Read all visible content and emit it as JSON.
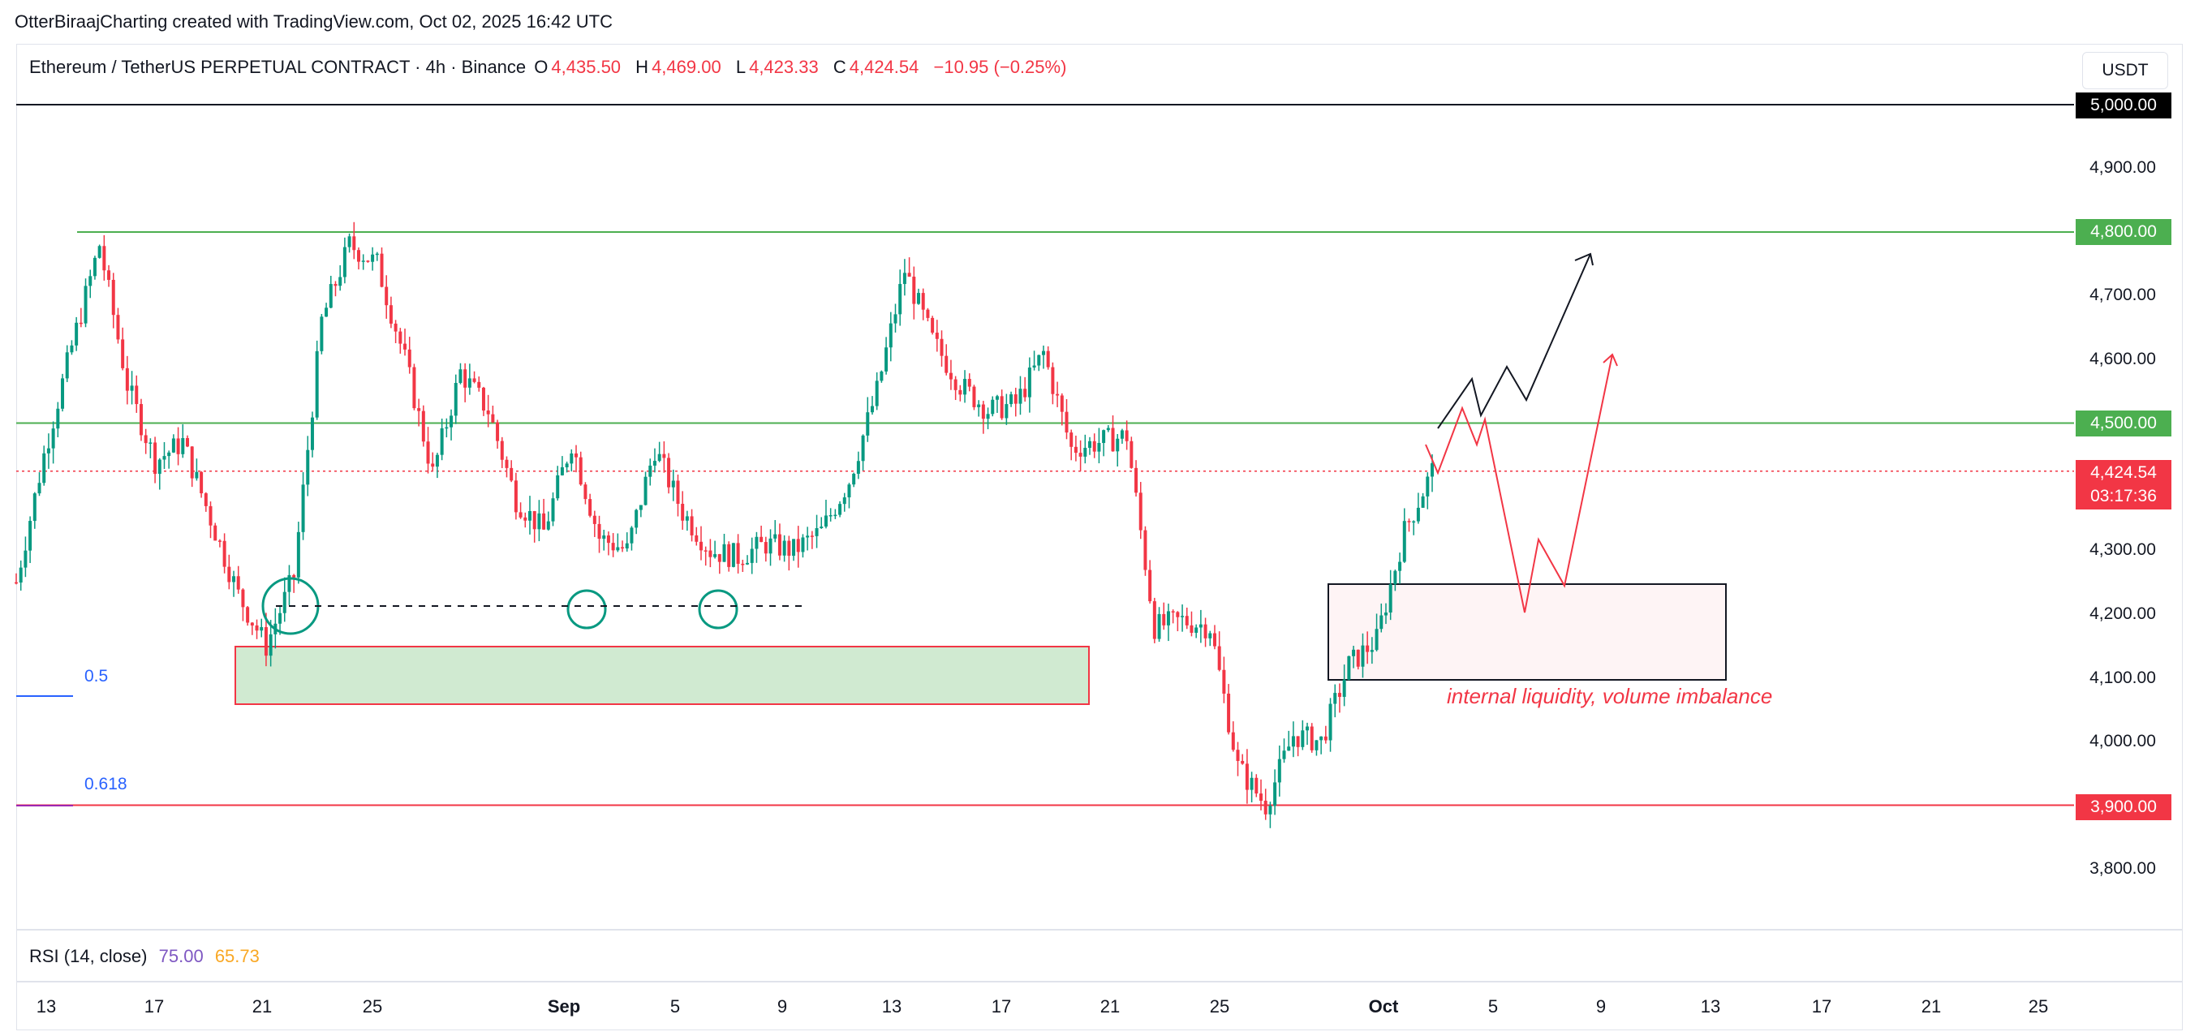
{
  "attribution": "OtterBiraajCharting created with TradingView.com, Oct 02, 2025 16:42 UTC",
  "header": {
    "symbol": "Ethereum / TetherUS PERPETUAL CONTRACT · 4h · Binance",
    "open_label": "O",
    "open": "4,435.50",
    "high_label": "H",
    "high": "4,469.00",
    "low_label": "L",
    "low": "4,423.33",
    "close_label": "C",
    "close": "4,424.54",
    "change": "−10.95 (−0.25%)"
  },
  "currency": "USDT",
  "colors": {
    "up": "#089981",
    "down": "#f23645",
    "level_green": "#4caf50",
    "level_red": "#f23645",
    "fib_blue": "#2962ff"
  },
  "price_axis": [
    "4,900.00",
    "4,700.00",
    "4,600.00",
    "4,300.00",
    "4,200.00",
    "4,100.00",
    "4,000.00",
    "3,800.00"
  ],
  "price_labels": {
    "top": "5,000.00",
    "green_high": "4,800.00",
    "green_mid": "4,500.00",
    "current_price": "4,424.54",
    "countdown": "03:17:36",
    "red_low": "3,900.00"
  },
  "fib": {
    "a": "0.5",
    "b": "0.618"
  },
  "annotation": "internal liquidity, volume imbalance",
  "rsi": {
    "label": "RSI (14, close)",
    "v1": "75.00",
    "v2": "65.73"
  },
  "time_axis": [
    "13",
    "17",
    "21",
    "25",
    "Sep",
    "5",
    "9",
    "13",
    "17",
    "21",
    "25",
    "Oct",
    "5",
    "9",
    "13",
    "17",
    "21",
    "25"
  ],
  "chart_data": {
    "type": "candlestick",
    "title": "Ethereum / TetherUS PERPETUAL CONTRACT · 4h · Binance",
    "ylim": [
      3750,
      5000
    ],
    "levels": [
      5000,
      4800,
      4500,
      3900
    ],
    "current_price": 4424.54,
    "close_path": [
      [
        "Aug 11",
        4250
      ],
      [
        "Aug 12",
        4450
      ],
      [
        "Aug 13",
        4620
      ],
      [
        "Aug 14",
        4780
      ],
      [
        "Aug 15",
        4560
      ],
      [
        "Aug 16",
        4440
      ],
      [
        "Aug 17",
        4470
      ],
      [
        "Aug 18",
        4350
      ],
      [
        "Aug 19",
        4230
      ],
      [
        "Aug 20",
        4150
      ],
      [
        "Aug 21",
        4260
      ],
      [
        "Aug 22",
        4660
      ],
      [
        "Aug 23",
        4780
      ],
      [
        "Aug 24",
        4750
      ],
      [
        "Aug 25",
        4600
      ],
      [
        "Aug 26",
        4420
      ],
      [
        "Aug 27",
        4580
      ],
      [
        "Aug 28",
        4520
      ],
      [
        "Aug 29",
        4380
      ],
      [
        "Aug 30",
        4330
      ],
      [
        "Aug 31",
        4470
      ],
      [
        "Sep 1",
        4320
      ],
      [
        "Sep 2",
        4300
      ],
      [
        "Sep 3",
        4460
      ],
      [
        "Sep 4",
        4360
      ],
      [
        "Sep 5",
        4300
      ],
      [
        "Sep 6",
        4290
      ],
      [
        "Sep 7",
        4310
      ],
      [
        "Sep 8",
        4300
      ],
      [
        "Sep 9",
        4330
      ],
      [
        "Sep 10",
        4410
      ],
      [
        "Sep 12",
        4550
      ],
      [
        "Sep 13",
        4740
      ],
      [
        "Sep 14",
        4630
      ],
      [
        "Sep 15",
        4560
      ],
      [
        "Sep 16",
        4520
      ],
      [
        "Sep 17",
        4530
      ],
      [
        "Sep 18",
        4610
      ],
      [
        "Sep 19",
        4460
      ],
      [
        "Sep 20",
        4470
      ],
      [
        "Sep 21",
        4480
      ],
      [
        "Sep 22",
        4180
      ],
      [
        "Sep 23",
        4190
      ],
      [
        "Sep 24",
        4180
      ],
      [
        "Sep 25",
        3960
      ],
      [
        "Sep 26",
        3900
      ],
      [
        "Sep 27",
        4010
      ],
      [
        "Sep 28",
        4000
      ],
      [
        "Sep 29",
        4120
      ],
      [
        "Sep 30",
        4160
      ],
      [
        "Oct 1",
        4330
      ],
      [
        "Oct 2",
        4424.54
      ]
    ]
  }
}
